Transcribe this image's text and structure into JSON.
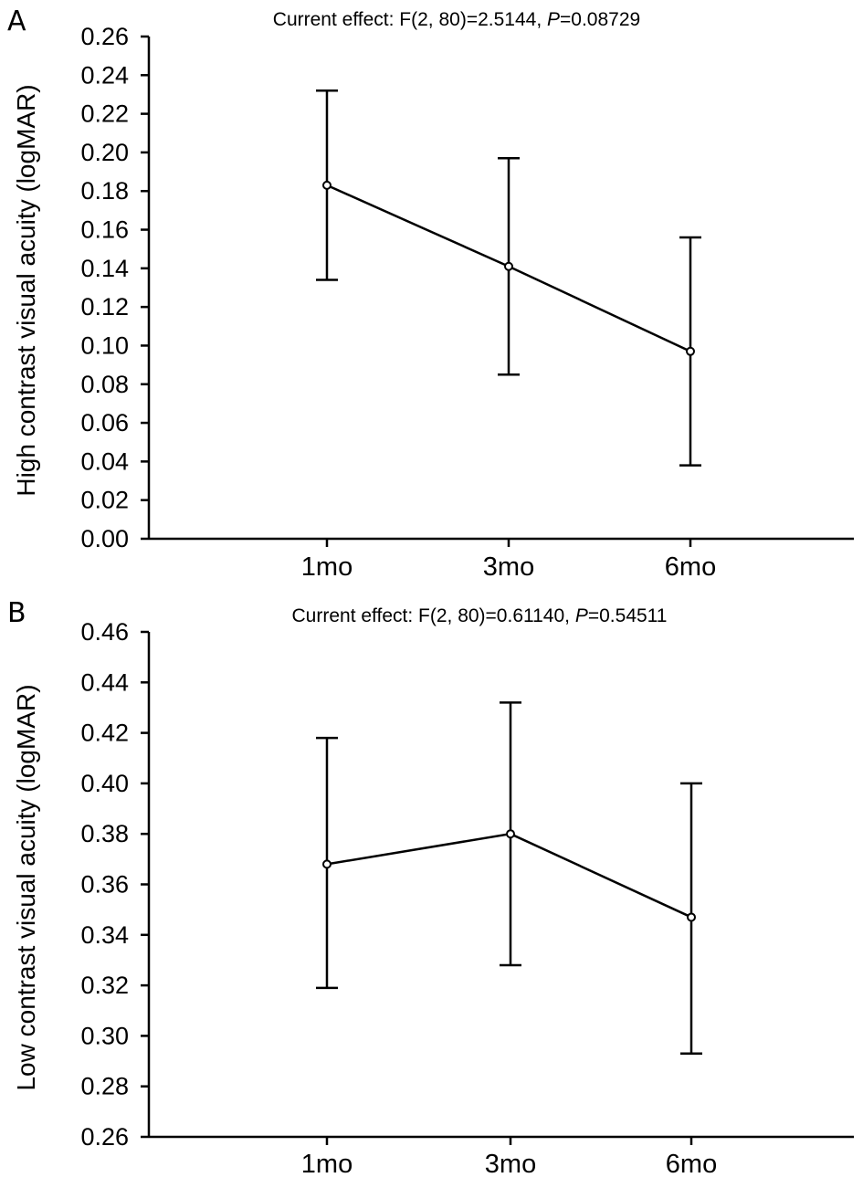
{
  "chart_data": [
    {
      "type": "line",
      "panel": "A",
      "title_prefix": "Current effect: F(2, 80)=2.5144, ",
      "title_p": "P",
      "title_suffix": "=0.08729",
      "ylabel": "High contrast visual acuity (logMAR)",
      "categories": [
        "1mo",
        "3mo",
        "6mo"
      ],
      "series": [
        {
          "values": [
            0.183,
            0.141,
            0.097
          ],
          "error_low": [
            0.134,
            0.085,
            0.038
          ],
          "error_high": [
            0.232,
            0.197,
            0.156
          ]
        }
      ],
      "ylim": [
        0.0,
        0.26
      ],
      "yticks": [
        "0.00",
        "0.02",
        "0.04",
        "0.06",
        "0.08",
        "0.10",
        "0.12",
        "0.14",
        "0.16",
        "0.18",
        "0.20",
        "0.22",
        "0.24",
        "0.26"
      ],
      "grid": false
    },
    {
      "type": "line",
      "panel": "B",
      "title_prefix": "Current effect: F(2, 80)=0.61140, ",
      "title_p": "P",
      "title_suffix": "=0.54511",
      "ylabel": "Low contrast visual acuity (logMAR)",
      "categories": [
        "1mo",
        "3mo",
        "6mo"
      ],
      "series": [
        {
          "values": [
            0.368,
            0.38,
            0.347
          ],
          "error_low": [
            0.319,
            0.328,
            0.293
          ],
          "error_high": [
            0.418,
            0.432,
            0.4
          ]
        }
      ],
      "ylim": [
        0.26,
        0.46
      ],
      "yticks": [
        "0.26",
        "0.28",
        "0.30",
        "0.32",
        "0.34",
        "0.36",
        "0.38",
        "0.40",
        "0.42",
        "0.44",
        "0.46"
      ],
      "grid": false
    }
  ]
}
